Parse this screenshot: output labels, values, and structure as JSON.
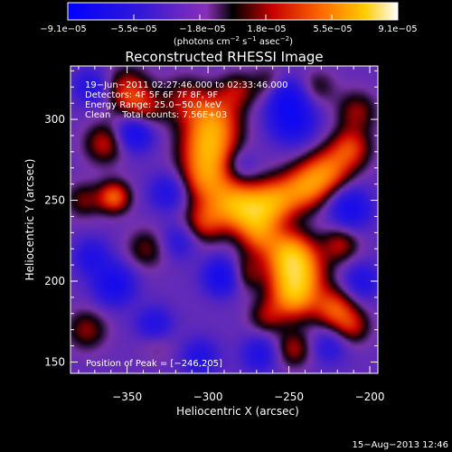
{
  "chart_data": {
    "type": "heatmap",
    "title": "Reconstructed RHESSI Image",
    "xlabel": "Heliocentric X (arcsec)",
    "ylabel": "Heliocentric Y (arcsec)",
    "xlim": [
      -385,
      -195
    ],
    "ylim": [
      143,
      333
    ],
    "x_ticks": [
      -350,
      -300,
      -250,
      -200
    ],
    "x_tick_labels": [
      "−350",
      "−300",
      "−250",
      "−200"
    ],
    "y_ticks": [
      150,
      200,
      250,
      300
    ],
    "y_tick_labels": [
      "150",
      "200",
      "250",
      "300"
    ],
    "colorbar": {
      "min": -9.1e-05,
      "max": 9.1e-05,
      "tick_labels": [
        "−9.1e−05",
        "−5.5e−05",
        "−1.8e−05",
        "1.8e−05",
        "5.5e−05",
        "9.1e−05"
      ],
      "units_prefix": "(photons cm",
      "units_mid1": " s",
      "units_mid2": " asec",
      "units_suffix": ")",
      "exp1": "−2",
      "exp2": "−1",
      "exp3": "−2"
    },
    "annotations": [
      "19−Jun−2011 02:27:46.000 to 02:33:46.000",
      "Detectors: 4F 5F 6F 7F 8F, 9F",
      "Energy Range: 25.0−50.0 keV",
      "Clean    Total counts: 7.56E+03"
    ],
    "peak_label": "Position of Peak = [−246,205]",
    "peak": [
      -246,
      205
    ],
    "sources": [
      {
        "x": -245,
        "y": 206,
        "amp": 1.0,
        "s": 12
      },
      {
        "x": -247,
        "y": 190,
        "amp": 0.8,
        "s": 10
      },
      {
        "x": -250,
        "y": 218,
        "amp": 0.7,
        "s": 10
      },
      {
        "x": -300,
        "y": 280,
        "amp": 0.9,
        "s": 12
      },
      {
        "x": -297,
        "y": 300,
        "amp": 0.8,
        "s": 12
      },
      {
        "x": -302,
        "y": 262,
        "amp": 0.6,
        "s": 10
      },
      {
        "x": -286,
        "y": 248,
        "amp": 0.85,
        "s": 11
      },
      {
        "x": -272,
        "y": 243,
        "amp": 0.75,
        "s": 10
      },
      {
        "x": -258,
        "y": 250,
        "amp": 0.8,
        "s": 10
      },
      {
        "x": -240,
        "y": 258,
        "amp": 0.8,
        "s": 10
      },
      {
        "x": -226,
        "y": 268,
        "amp": 0.75,
        "s": 10
      },
      {
        "x": -212,
        "y": 282,
        "amp": 0.65,
        "s": 9
      },
      {
        "x": -268,
        "y": 228,
        "amp": 0.6,
        "s": 9
      },
      {
        "x": -303,
        "y": 236,
        "amp": 0.55,
        "s": 9
      },
      {
        "x": -358,
        "y": 252,
        "amp": 0.8,
        "s": 7
      },
      {
        "x": -364,
        "y": 285,
        "amp": 0.55,
        "s": 9
      },
      {
        "x": -350,
        "y": 318,
        "amp": 0.6,
        "s": 10
      },
      {
        "x": -340,
        "y": 305,
        "amp": 0.5,
        "s": 9
      },
      {
        "x": -377,
        "y": 250,
        "amp": 0.4,
        "s": 8
      },
      {
        "x": -315,
        "y": 313,
        "amp": 0.4,
        "s": 10
      },
      {
        "x": -338,
        "y": 220,
        "amp": 0.4,
        "s": 9
      },
      {
        "x": -375,
        "y": 170,
        "amp": 0.45,
        "s": 9
      },
      {
        "x": -332,
        "y": 163,
        "amp": 0.3,
        "s": 8
      },
      {
        "x": -222,
        "y": 183,
        "amp": 0.7,
        "s": 9
      },
      {
        "x": -211,
        "y": 172,
        "amp": 0.5,
        "s": 8
      },
      {
        "x": -218,
        "y": 223,
        "amp": 0.5,
        "s": 8
      },
      {
        "x": -278,
        "y": 205,
        "amp": 0.45,
        "s": 8
      },
      {
        "x": -264,
        "y": 178,
        "amp": 0.4,
        "s": 8
      },
      {
        "x": -247,
        "y": 158,
        "amp": 0.5,
        "s": 8
      },
      {
        "x": -208,
        "y": 305,
        "amp": 0.45,
        "s": 9
      },
      {
        "x": -282,
        "y": 318,
        "amp": 0.4,
        "s": 8
      },
      {
        "x": -262,
        "y": 322,
        "amp": 0.35,
        "s": 8
      },
      {
        "x": -232,
        "y": 320,
        "amp": 0.3,
        "s": 8
      },
      {
        "x": -345,
        "y": 292,
        "amp": -0.8,
        "s": 8
      },
      {
        "x": -358,
        "y": 198,
        "amp": -0.7,
        "s": 9
      },
      {
        "x": -333,
        "y": 172,
        "amp": -0.6,
        "s": 8
      },
      {
        "x": -291,
        "y": 203,
        "amp": -0.8,
        "s": 8
      },
      {
        "x": -248,
        "y": 300,
        "amp": -0.8,
        "s": 10
      },
      {
        "x": -252,
        "y": 315,
        "amp": -0.6,
        "s": 8
      },
      {
        "x": -212,
        "y": 245,
        "amp": -0.7,
        "s": 9
      },
      {
        "x": -268,
        "y": 155,
        "amp": -0.5,
        "s": 8
      },
      {
        "x": -305,
        "y": 153,
        "amp": -0.5,
        "s": 8
      },
      {
        "x": -372,
        "y": 215,
        "amp": -0.5,
        "s": 8
      },
      {
        "x": -325,
        "y": 255,
        "amp": -0.5,
        "s": 8
      },
      {
        "x": -372,
        "y": 320,
        "amp": -0.5,
        "s": 8
      },
      {
        "x": -205,
        "y": 200,
        "amp": -0.5,
        "s": 8
      },
      {
        "x": -225,
        "y": 160,
        "amp": -0.4,
        "s": 8
      },
      {
        "x": -318,
        "y": 225,
        "amp": -0.4,
        "s": 8
      },
      {
        "x": -280,
        "y": 272,
        "amp": -0.3,
        "s": 7
      }
    ],
    "baseline": -0.3,
    "value_scale": 1.05
  },
  "footer": {
    "date": "15−Aug−2013 12:46"
  }
}
